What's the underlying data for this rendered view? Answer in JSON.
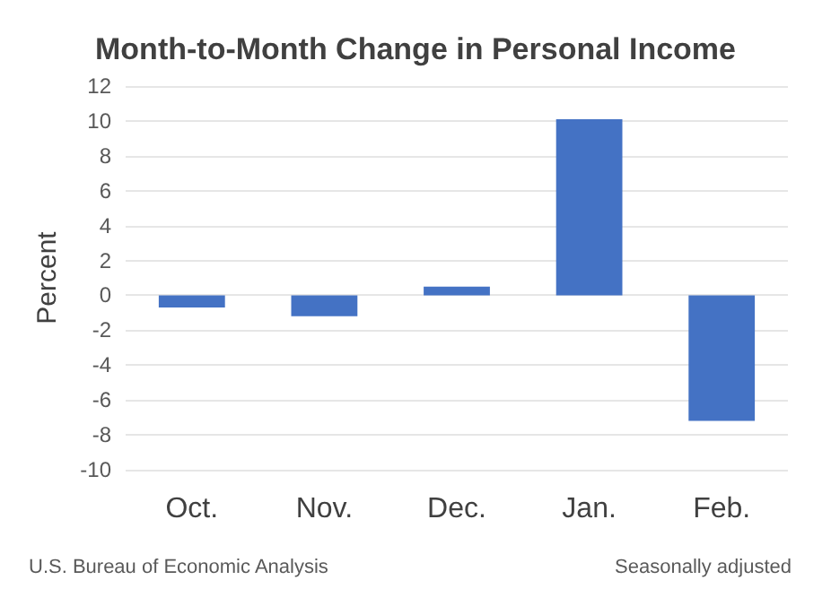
{
  "chart_data": {
    "type": "bar",
    "title": "Month-to-Month Change in Personal Income",
    "ylabel": "Percent",
    "categories": [
      "Oct.",
      "Nov.",
      "Dec.",
      "Jan.",
      "Feb."
    ],
    "values": [
      -0.7,
      -1.2,
      0.5,
      10.1,
      -7.2
    ],
    "color": "#4472c4",
    "ylim": [
      -10,
      12
    ],
    "yticks": [
      -10,
      -8,
      -6,
      -4,
      -2,
      0,
      2,
      4,
      6,
      8,
      10,
      12
    ],
    "grid": "y",
    "annotations": [
      "U.S. Bureau of Economic Analysis",
      "Seasonally adjusted"
    ]
  }
}
